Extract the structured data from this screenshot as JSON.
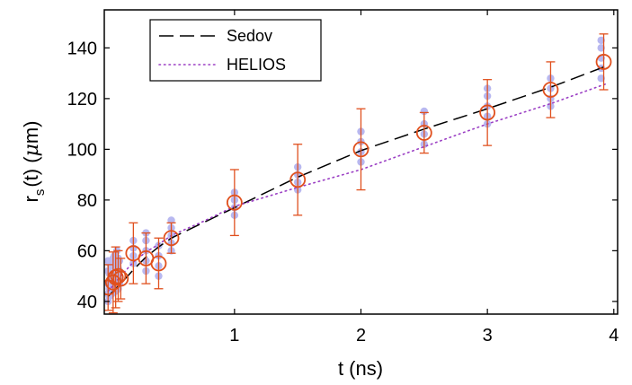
{
  "chart_data": {
    "type": "scatter",
    "xlabel": "t (ns)",
    "ylabel": "r_s(t) (μm)",
    "ylabel_parts": {
      "main": "r",
      "sub": "s",
      "rest": "(t) (",
      "greek": "μ",
      "unit": "m)"
    },
    "xlim": [
      -0.03,
      4.03
    ],
    "ylim": [
      35,
      155
    ],
    "xticks": [
      1,
      2,
      3,
      4
    ],
    "yticks": [
      40,
      60,
      80,
      100,
      120,
      140
    ],
    "grid": false,
    "legend_position": "top-left",
    "series": [
      {
        "name": "Sedov",
        "kind": "line",
        "style": "dashed",
        "color": "#000000",
        "x": [
          0.0,
          0.05,
          0.1,
          0.2,
          0.3,
          0.4,
          0.5,
          0.75,
          1.0,
          1.5,
          2.0,
          2.5,
          3.0,
          3.5,
          3.95
        ],
        "y": [
          42,
          44.5,
          47,
          52.5,
          57.5,
          61.5,
          65,
          71,
          77,
          89,
          99.5,
          108,
          116,
          124.5,
          133
        ]
      },
      {
        "name": "HELIOS",
        "kind": "line",
        "style": "dotted",
        "color": "#9b3fc4",
        "x": [
          0.0,
          0.05,
          0.1,
          0.2,
          0.3,
          0.4,
          0.5,
          0.75,
          1.0,
          1.5,
          2.0,
          2.5,
          3.0,
          3.5,
          3.95
        ],
        "y": [
          44,
          47,
          50,
          55.5,
          59.5,
          62.5,
          66,
          71.5,
          77.5,
          85,
          92,
          101,
          110,
          118,
          126
        ]
      },
      {
        "kind": "scatter",
        "color": "#b8b8f0",
        "marker": "dot",
        "x": [
          0.0,
          0.0,
          0.0,
          0.0,
          0.0,
          0.01,
          0.01,
          0.01,
          0.01,
          0.01,
          0.03,
          0.03,
          0.03,
          0.03,
          0.04,
          0.04,
          0.04,
          0.04,
          0.05,
          0.05,
          0.05,
          0.06,
          0.06,
          0.06,
          0.07,
          0.07,
          0.07,
          0.07,
          0.08,
          0.08,
          0.08,
          0.08,
          0.09,
          0.09,
          0.09,
          0.2,
          0.2,
          0.2,
          0.2,
          0.3,
          0.3,
          0.3,
          0.3,
          0.3,
          0.4,
          0.4,
          0.4,
          0.4,
          0.5,
          0.5,
          0.5,
          0.5,
          0.5,
          1.0,
          1.0,
          1.0,
          1.0,
          1.5,
          1.5,
          1.5,
          1.5,
          2.0,
          2.0,
          2.0,
          2.0,
          2.5,
          2.5,
          2.5,
          2.5,
          3.0,
          3.0,
          3.0,
          3.0,
          3.0,
          3.5,
          3.5,
          3.5,
          3.5,
          3.9,
          3.9,
          3.9,
          3.9,
          3.9
        ],
        "y": [
          40,
          43,
          47,
          52,
          56,
          42,
          45,
          48,
          51,
          55,
          43,
          46,
          50,
          54,
          44,
          47,
          51,
          57,
          45,
          49,
          58,
          44,
          48,
          53,
          46,
          50,
          55,
          60,
          45,
          49,
          53,
          57,
          47,
          52,
          56,
          55,
          58,
          61,
          64,
          52,
          56,
          60,
          64,
          67,
          50,
          54,
          58,
          62,
          60,
          63,
          66,
          69,
          72,
          74,
          77,
          80,
          83,
          84,
          87,
          90,
          93,
          95,
          99,
          103,
          107,
          102,
          106,
          110,
          115,
          110,
          113,
          117,
          121,
          124,
          117,
          120,
          124,
          128,
          128,
          132,
          136,
          140,
          143
        ]
      },
      {
        "kind": "errorbar",
        "color": "#e0501e",
        "marker": "circle",
        "x": [
          0.0,
          0.04,
          0.06,
          0.08,
          0.1,
          0.2,
          0.3,
          0.4,
          0.5,
          1.0,
          1.5,
          2.0,
          2.5,
          3.0,
          3.5,
          3.92
        ],
        "y": [
          45.5,
          47.5,
          49.5,
          50.0,
          49.0,
          59.0,
          57.0,
          55.0,
          65.0,
          79.0,
          88.0,
          100.0,
          106.5,
          114.5,
          123.5,
          134.5
        ],
        "err": [
          9,
          12,
          12,
          10,
          8,
          12,
          10,
          10,
          6,
          13,
          14,
          16,
          8,
          13,
          11,
          11
        ]
      }
    ]
  }
}
